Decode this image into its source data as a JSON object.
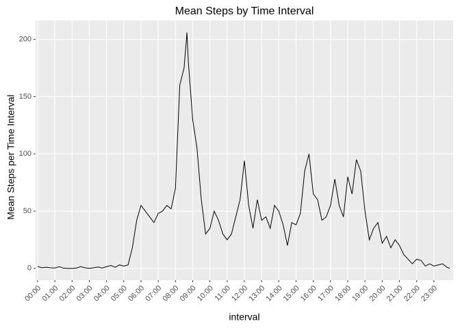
{
  "chart_data": {
    "type": "line",
    "title": "Mean Steps by Time Interval",
    "x_label": "interval",
    "y_label": "Mean Steps per Time Interval",
    "x": [
      0,
      15,
      30,
      45,
      60,
      75,
      90,
      105,
      120,
      135,
      150,
      165,
      180,
      195,
      210,
      225,
      240,
      255,
      270,
      285,
      300,
      315,
      330,
      345,
      360,
      375,
      390,
      405,
      420,
      435,
      450,
      465,
      480,
      495,
      510,
      520,
      525,
      540,
      555,
      570,
      585,
      600,
      615,
      630,
      645,
      660,
      675,
      690,
      705,
      720,
      735,
      750,
      765,
      780,
      795,
      810,
      825,
      840,
      855,
      870,
      885,
      900,
      915,
      930,
      945,
      960,
      975,
      990,
      1005,
      1020,
      1035,
      1050,
      1065,
      1080,
      1095,
      1110,
      1125,
      1140,
      1155,
      1170,
      1185,
      1200,
      1215,
      1230,
      1245,
      1260,
      1275,
      1290,
      1305,
      1320,
      1335,
      1350,
      1365,
      1380,
      1395,
      1410,
      1425,
      1435
    ],
    "series": [
      {
        "name": "mean steps",
        "color": "#000000",
        "values": [
          1.7,
          0.5,
          1,
          0.5,
          0.3,
          1.5,
          0.2,
          0,
          0,
          0.3,
          1.5,
          0.5,
          0,
          0.5,
          1.2,
          0.3,
          1.5,
          2.5,
          1,
          3,
          2,
          3,
          18,
          42,
          55,
          50,
          45,
          40,
          48,
          50,
          55,
          52,
          70,
          160,
          175,
          206,
          180,
          130,
          105,
          60,
          30,
          35,
          50,
          42,
          30,
          25,
          30,
          45,
          60,
          94,
          55,
          35,
          60,
          42,
          45,
          35,
          55,
          50,
          38,
          20,
          40,
          38,
          48,
          85,
          100,
          65,
          60,
          42,
          45,
          55,
          78,
          55,
          45,
          80,
          65,
          95,
          85,
          50,
          25,
          35,
          40,
          22,
          28,
          18,
          25,
          20,
          12,
          8,
          4,
          8,
          7,
          2,
          4,
          2,
          3,
          4,
          1,
          0
        ]
      }
    ],
    "xlim": [
      -7,
      1447
    ],
    "ylim": [
      -10.3,
      216.5
    ],
    "xticks": [
      {
        "value": 0,
        "label": "00:00"
      },
      {
        "value": 60,
        "label": "01:00"
      },
      {
        "value": 120,
        "label": "02:00"
      },
      {
        "value": 180,
        "label": "03:00"
      },
      {
        "value": 240,
        "label": "04:00"
      },
      {
        "value": 300,
        "label": "05:00"
      },
      {
        "value": 360,
        "label": "06:00"
      },
      {
        "value": 420,
        "label": "07:00"
      },
      {
        "value": 480,
        "label": "08:00"
      },
      {
        "value": 540,
        "label": "09:00"
      },
      {
        "value": 600,
        "label": "10:00"
      },
      {
        "value": 660,
        "label": "11:00"
      },
      {
        "value": 720,
        "label": "12:00"
      },
      {
        "value": 780,
        "label": "13:00"
      },
      {
        "value": 840,
        "label": "14:00"
      },
      {
        "value": 900,
        "label": "15:00"
      },
      {
        "value": 960,
        "label": "16:00"
      },
      {
        "value": 1020,
        "label": "17:00"
      },
      {
        "value": 1080,
        "label": "18:00"
      },
      {
        "value": 1140,
        "label": "19:00"
      },
      {
        "value": 1200,
        "label": "20:00"
      },
      {
        "value": 1260,
        "label": "21:00"
      },
      {
        "value": 1320,
        "label": "22:00"
      },
      {
        "value": 1380,
        "label": "23:00"
      }
    ],
    "yticks": [
      0,
      50,
      100,
      150,
      200
    ],
    "grid": true
  }
}
